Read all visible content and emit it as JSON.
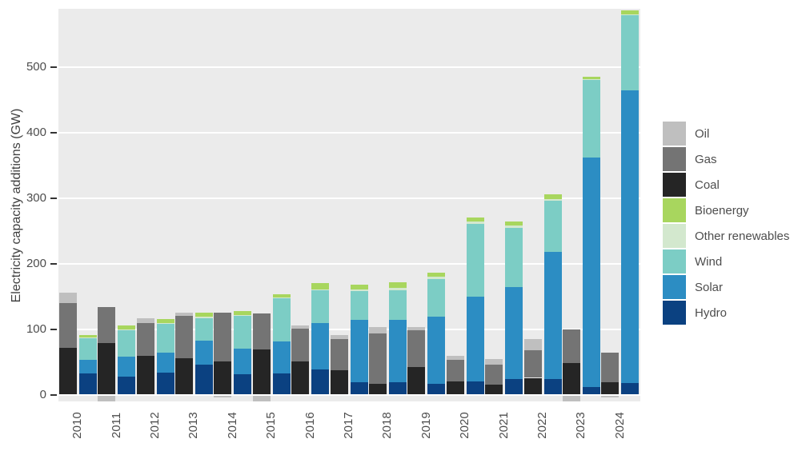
{
  "colors": {
    "background": "#ffffff",
    "panel": "#ebebeb",
    "grid": "#ffffff",
    "text": "#4d4d4d",
    "tick_mark": "#333333"
  },
  "chart_data": {
    "type": "bar",
    "variant": "paired-stacked-columns",
    "title": "",
    "xlabel": "",
    "ylabel": "Electricity capacity additions (GW)",
    "units": "GW",
    "ylim": [
      -15,
      590
    ],
    "yticks": [
      0,
      100,
      200,
      300,
      400,
      500
    ],
    "grid": "horizontal white major gridlines on light gray panel",
    "legend_position": "right",
    "categories": [
      "2010",
      "2011",
      "2012",
      "2013",
      "2014",
      "2015",
      "2016",
      "2017",
      "2018",
      "2019",
      "2020",
      "2021",
      "2022",
      "2023",
      "2024"
    ],
    "groups": [
      "fossil",
      "renewables"
    ],
    "stack_order_bottom_to_top": {
      "fossil": [
        "Coal",
        "Gas",
        "Oil"
      ],
      "renewables": [
        "Hydro",
        "Solar",
        "Wind",
        "Other renewables",
        "Bioenergy"
      ]
    },
    "series": [
      {
        "name": "Oil",
        "group": "fossil",
        "color": "#bfbfbf",
        "values": [
          16,
          -9,
          7,
          5,
          -3,
          -10,
          5,
          6,
          9,
          6,
          6,
          9,
          17,
          -9,
          -3
        ]
      },
      {
        "name": "Gas",
        "group": "fossil",
        "color": "#747474",
        "values": [
          68,
          55,
          51,
          65,
          75,
          55,
          50,
          47,
          77,
          56,
          32,
          30,
          42,
          51,
          46
        ]
      },
      {
        "name": "Coal",
        "group": "fossil",
        "color": "#252525",
        "values": [
          71,
          78,
          58,
          55,
          50,
          68,
          50,
          37,
          16,
          41,
          20,
          15,
          25,
          48,
          18
        ]
      },
      {
        "name": "Bioenergy",
        "group": "renewables",
        "color": "#a8d65e",
        "values": [
          4,
          6,
          6,
          6,
          6,
          5,
          9,
          7,
          9,
          6,
          6,
          6,
          7,
          4,
          6
        ]
      },
      {
        "name": "Other renewables",
        "group": "renewables",
        "color": "#d3e8ce",
        "values": [
          1,
          1,
          1,
          2,
          1,
          1,
          2,
          3,
          3,
          3,
          3,
          3,
          3,
          1,
          1
        ]
      },
      {
        "name": "Wind",
        "group": "renewables",
        "color": "#7ccdc5",
        "values": [
          32,
          41,
          45,
          34,
          50,
          66,
          50,
          44,
          46,
          58,
          111,
          91,
          78,
          118,
          114
        ]
      },
      {
        "name": "Solar",
        "group": "renewables",
        "color": "#2c8dc3",
        "values": [
          21,
          30,
          30,
          37,
          39,
          48,
          70,
          95,
          95,
          102,
          129,
          140,
          194,
          350,
          447
        ]
      },
      {
        "name": "Hydro",
        "group": "renewables",
        "color": "#0b4181",
        "values": [
          32,
          27,
          33,
          45,
          31,
          32,
          38,
          18,
          18,
          16,
          20,
          23,
          23,
          11,
          17
        ]
      }
    ]
  }
}
